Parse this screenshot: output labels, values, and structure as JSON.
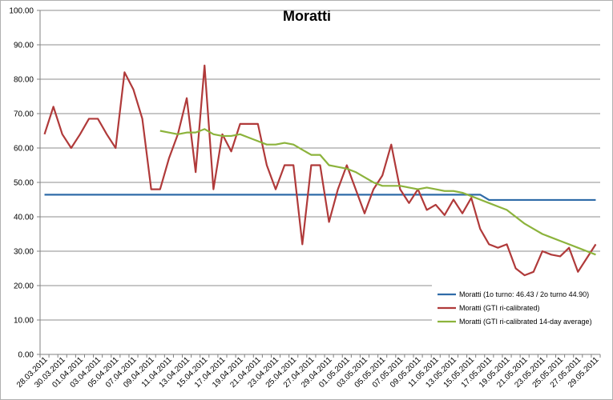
{
  "chart_data": {
    "type": "line",
    "title": "Moratti",
    "xlabel": "",
    "ylabel": "",
    "ylim": [
      0,
      100
    ],
    "yticks": [
      "0.00",
      "10.00",
      "20.00",
      "30.00",
      "40.00",
      "50.00",
      "60.00",
      "70.00",
      "80.00",
      "90.00",
      "100.00"
    ],
    "grid": "horizontal",
    "legend_position": "bottom-right",
    "x": [
      "28.03.2011",
      "29.03.2011",
      "30.03.2011",
      "31.03.2011",
      "01.04.2011",
      "02.04.2011",
      "03.04.2011",
      "04.04.2011",
      "05.04.2011",
      "06.04.2011",
      "07.04.2011",
      "08.04.2011",
      "09.04.2011",
      "10.04.2011",
      "11.04.2011",
      "12.04.2011",
      "13.04.2011",
      "14.04.2011",
      "15.04.2011",
      "16.04.2011",
      "17.04.2011",
      "18.04.2011",
      "19.04.2011",
      "20.04.2011",
      "21.04.2011",
      "22.04.2011",
      "23.04.2011",
      "24.04.2011",
      "25.04.2011",
      "26.04.2011",
      "27.04.2011",
      "28.04.2011",
      "29.04.2011",
      "30.04.2011",
      "01.05.2011",
      "02.05.2011",
      "03.05.2011",
      "04.05.2011",
      "05.05.2011",
      "06.05.2011",
      "07.05.2011",
      "08.05.2011",
      "09.05.2011",
      "10.05.2011",
      "11.05.2011",
      "12.05.2011",
      "13.05.2011",
      "14.05.2011",
      "15.05.2011",
      "16.05.2011",
      "17.05.2011",
      "18.05.2011",
      "19.05.2011",
      "20.05.2011",
      "21.05.2011",
      "22.05.2011",
      "23.05.2011",
      "24.05.2011",
      "25.05.2011",
      "26.05.2011",
      "27.05.2011",
      "28.05.2011",
      "29.05.2011"
    ],
    "x_tick_labels": [
      "28.03.2011",
      "30.03.2011",
      "01.04.2011",
      "03.04.2011",
      "05.04.2011",
      "07.04.2011",
      "09.04.2011",
      "11.04.2011",
      "13.04.2011",
      "15.04.2011",
      "17.04.2011",
      "19.04.2011",
      "21.04.2011",
      "23.04.2011",
      "25.04.2011",
      "27.04.2011",
      "29.04.2011",
      "01.05.2011",
      "03.05.2011",
      "05.05.2011",
      "07.05.2011",
      "09.05.2011",
      "11.05.2011",
      "13.05.2011",
      "15.05.2011",
      "17.05.2011",
      "19.05.2011",
      "21.05.2011",
      "23.05.2011",
      "25.05.2011",
      "27.05.2011",
      "29.05.2011"
    ],
    "series": [
      {
        "name": "Moratti (1o turno: 46.43 / 2o turno 44.90)",
        "color": "#2f6ba8",
        "values": [
          46.43,
          46.43,
          46.43,
          46.43,
          46.43,
          46.43,
          46.43,
          46.43,
          46.43,
          46.43,
          46.43,
          46.43,
          46.43,
          46.43,
          46.43,
          46.43,
          46.43,
          46.43,
          46.43,
          46.43,
          46.43,
          46.43,
          46.43,
          46.43,
          46.43,
          46.43,
          46.43,
          46.43,
          46.43,
          46.43,
          46.43,
          46.43,
          46.43,
          46.43,
          46.43,
          46.43,
          46.43,
          46.43,
          46.43,
          46.43,
          46.43,
          46.43,
          46.43,
          46.43,
          46.43,
          46.43,
          46.43,
          46.43,
          46.43,
          46.43,
          44.9,
          44.9,
          44.9,
          44.9,
          44.9,
          44.9,
          44.9,
          44.9,
          44.9,
          44.9,
          44.9,
          44.9,
          44.9
        ]
      },
      {
        "name": "Moratti (GTI ri-calibrated)",
        "color": "#b03a3a",
        "values": [
          64,
          72,
          64,
          60,
          64,
          68.5,
          68.5,
          64,
          60,
          82,
          77,
          68.5,
          48,
          48,
          57,
          64,
          74.5,
          53,
          84,
          48,
          64,
          59,
          67,
          67,
          67,
          55,
          48,
          55,
          55,
          32,
          55,
          55,
          38.5,
          48,
          55,
          48,
          41,
          48,
          52,
          61,
          48,
          44,
          48,
          42,
          43.5,
          40.5,
          45,
          41,
          45.5,
          36.5,
          32,
          31,
          32,
          25,
          23,
          24,
          30,
          29,
          28.5,
          31,
          24,
          28,
          32
        ]
      },
      {
        "name": "Moratti (GTI ri-calibrated 14-day average)",
        "color": "#8cb33c",
        "values": [
          null,
          null,
          null,
          null,
          null,
          null,
          null,
          null,
          null,
          null,
          null,
          null,
          null,
          65,
          64.5,
          64,
          64.5,
          64.5,
          65.5,
          64,
          63.5,
          63.5,
          64,
          63,
          62,
          61,
          61,
          61.5,
          61,
          59.5,
          58,
          58,
          55,
          54.5,
          54,
          53,
          51.5,
          50,
          49,
          49,
          49,
          48.5,
          48,
          48.5,
          48,
          47.5,
          47.5,
          47,
          46,
          45,
          44,
          43,
          42,
          40,
          38,
          36.5,
          35,
          34,
          33,
          32,
          31,
          30,
          29
        ]
      }
    ]
  }
}
